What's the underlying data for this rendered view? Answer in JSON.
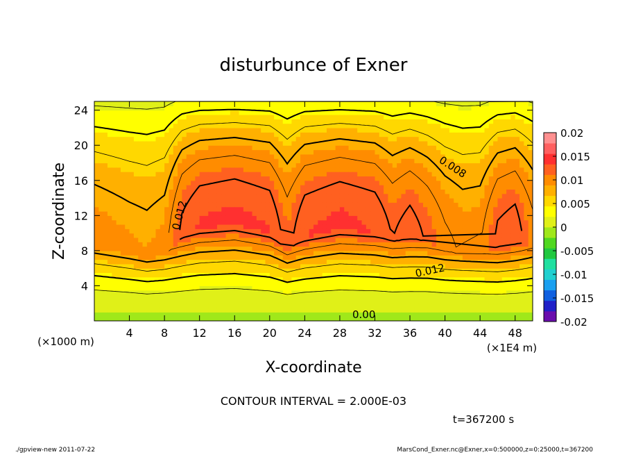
{
  "chart_data": {
    "type": "heatmap",
    "title": "disturbunce of Exner",
    "xlabel": "X-coordinate",
    "ylabel": "Z-coordinate",
    "x_unit_note": "(×1000 m)",
    "x_scale_note": "(×1E4 m)",
    "xlim": [
      0,
      50
    ],
    "ylim": [
      0,
      25
    ],
    "x_ticks": [
      4,
      8,
      12,
      16,
      20,
      24,
      28,
      32,
      36,
      40,
      44,
      48
    ],
    "y_ticks": [
      4,
      8,
      12,
      16,
      20,
      24
    ],
    "x_tick_labels": [
      "4",
      "8",
      "12",
      "16",
      "20",
      "24",
      "28",
      "32",
      "36",
      "40",
      "44",
      "48"
    ],
    "y_tick_labels": [
      "4",
      "8",
      "12",
      "16",
      "20",
      "24"
    ],
    "colorbar": {
      "range": [
        -0.02,
        0.02
      ],
      "tick_labels": [
        "0.02",
        "0.015",
        "0.01",
        "0.005",
        "0",
        "-0.005",
        "-0.01",
        "-0.015",
        "-0.02"
      ],
      "colors": [
        "#6a0dad",
        "#2020c8",
        "#1060e0",
        "#1aa0f0",
        "#20d0d0",
        "#20e0a0",
        "#20c840",
        "#50d820",
        "#a0e81a",
        "#e0f018",
        "#ffff00",
        "#ffd800",
        "#ffb000",
        "#ff8c00",
        "#ff6020",
        "#ff3030",
        "#ff6060",
        "#ff9090"
      ]
    },
    "contour_labels": [
      "0.012",
      "0.008",
      "0.012",
      "0.00"
    ],
    "contour_interval_text": "CONTOUR INTERVAL = 2.000E-03",
    "time_text": "t=367200 s",
    "profile_x": [
      0,
      4,
      6,
      8,
      10,
      12,
      16,
      20,
      22,
      24,
      28,
      32,
      34,
      36,
      38,
      40,
      42,
      44,
      46,
      48,
      50
    ],
    "profile_z_max": [
      8.5,
      7.5,
      7,
      7.5,
      9.5,
      10.5,
      11,
      10,
      8,
      9.5,
      10.5,
      10,
      9,
      9.5,
      9,
      8,
      7.5,
      7.5,
      8.5,
      9,
      8.5
    ],
    "profile_amp": [
      0.0098,
      0.0092,
      0.009,
      0.0095,
      0.0125,
      0.0135,
      0.0138,
      0.0134,
      0.0115,
      0.0133,
      0.0138,
      0.0133,
      0.012,
      0.0128,
      0.0118,
      0.0105,
      0.0098,
      0.01,
      0.0125,
      0.013,
      0.0108
    ]
  },
  "footer": {
    "left": "./gpview-new   2011-07-22",
    "right": "MarsCond_Exner.nc@Exner,x=0:500000,z=0:25000,t=367200"
  }
}
